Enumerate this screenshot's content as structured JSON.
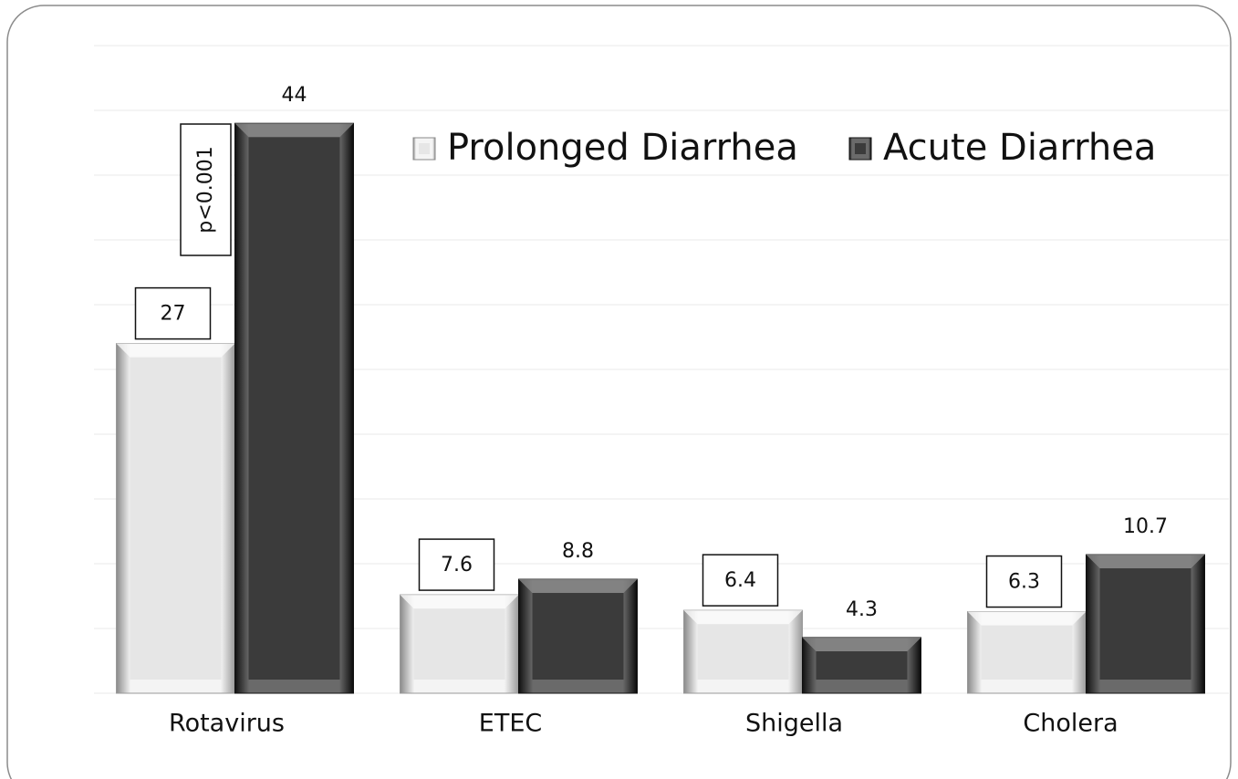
{
  "chart_data": {
    "type": "bar",
    "categories": [
      "Rotavirus",
      "ETEC",
      "Shigella",
      "Cholera"
    ],
    "series": [
      {
        "name": "Prolonged Diarrhea",
        "color": "#e6e6e6",
        "values": [
          27,
          7.6,
          6.4,
          6.3
        ]
      },
      {
        "name": "Acute Diarrhea",
        "color": "#3b3b3b",
        "values": [
          44,
          8.8,
          4.3,
          10.7
        ]
      }
    ],
    "annotations": [
      "p<0.001"
    ],
    "ylim": [
      0,
      50
    ],
    "yticks": [
      0,
      5,
      10,
      15,
      20,
      25,
      30,
      35,
      40,
      45,
      50
    ],
    "grid": true,
    "legend": "top"
  }
}
